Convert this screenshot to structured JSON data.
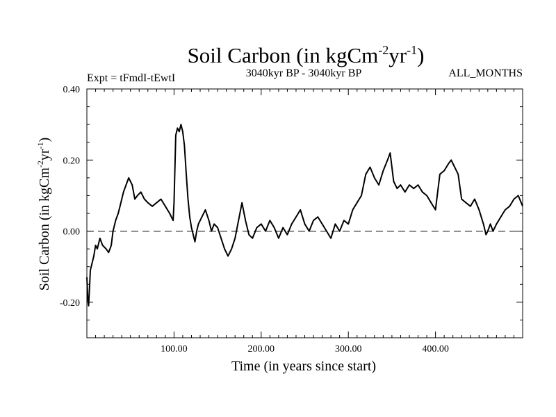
{
  "chart_data": {
    "type": "line",
    "title": {
      "main": "Soil Carbon (in kgCm",
      "sup1": "-2",
      "mid": "yr",
      "sup2": "-1",
      "end": ")"
    },
    "ylabel": {
      "main": "Soil Carbon (in kgCm",
      "sup1": "-2",
      "mid": "yr",
      "sup2": "-1",
      "end": ")"
    },
    "xlabel": "Time (in years since start)",
    "subtitle_left": "Expt = tFmdI-tEwtI",
    "subtitle_center": "3040kyr BP - 3040kyr BP",
    "subtitle_right": "ALL_MONTHS",
    "xlim": [
      0,
      500
    ],
    "ylim": [
      -0.3,
      0.4
    ],
    "xticks": [
      {
        "value": 100,
        "label": "100.00"
      },
      {
        "value": 200,
        "label": "200.00"
      },
      {
        "value": 300,
        "label": "300.00"
      },
      {
        "value": 400,
        "label": "400.00"
      }
    ],
    "yticks": [
      {
        "value": 0.4,
        "label": "0.40"
      },
      {
        "value": 0.2,
        "label": "0.20"
      },
      {
        "value": 0.0,
        "label": "0.00"
      },
      {
        "value": -0.2,
        "label": "-0.20"
      }
    ],
    "reference_line": 0.0,
    "series": [
      {
        "name": "Soil Carbon",
        "x": [
          0,
          1,
          2,
          3,
          4,
          6,
          8,
          10,
          12,
          15,
          18,
          22,
          25,
          28,
          30,
          33,
          36,
          38,
          40,
          42,
          45,
          48,
          50,
          52,
          55,
          58,
          62,
          66,
          70,
          75,
          80,
          85,
          90,
          95,
          99,
          100,
          102,
          104,
          106,
          108,
          110,
          112,
          114,
          116,
          118,
          120,
          122,
          124,
          126,
          128,
          132,
          136,
          140,
          143,
          146,
          150,
          154,
          158,
          162,
          166,
          170,
          174,
          178,
          182,
          186,
          190,
          195,
          200,
          205,
          210,
          215,
          220,
          225,
          230,
          235,
          240,
          245,
          250,
          255,
          260,
          265,
          270,
          275,
          280,
          285,
          290,
          295,
          300,
          305,
          310,
          315,
          320,
          325,
          330,
          335,
          340,
          345,
          348,
          352,
          356,
          360,
          365,
          370,
          375,
          380,
          385,
          390,
          395,
          400,
          405,
          410,
          415,
          418,
          422,
          426,
          430,
          435,
          440,
          445,
          450,
          455,
          458,
          460,
          463,
          466,
          470,
          475,
          480,
          485,
          490,
          495,
          500
        ],
        "values": [
          -0.13,
          -0.19,
          -0.21,
          -0.16,
          -0.11,
          -0.09,
          -0.07,
          -0.04,
          -0.05,
          -0.02,
          -0.04,
          -0.05,
          -0.06,
          -0.04,
          0.0,
          0.03,
          0.05,
          0.07,
          0.09,
          0.11,
          0.13,
          0.15,
          0.14,
          0.13,
          0.09,
          0.1,
          0.11,
          0.09,
          0.08,
          0.07,
          0.08,
          0.09,
          0.07,
          0.05,
          0.03,
          0.08,
          0.27,
          0.29,
          0.28,
          0.3,
          0.28,
          0.24,
          0.16,
          0.09,
          0.04,
          0.01,
          -0.01,
          -0.03,
          0.0,
          0.02,
          0.04,
          0.06,
          0.03,
          0.0,
          0.02,
          0.01,
          -0.02,
          -0.05,
          -0.07,
          -0.05,
          -0.02,
          0.03,
          0.08,
          0.03,
          -0.01,
          -0.02,
          0.01,
          0.02,
          0.0,
          0.03,
          0.01,
          -0.02,
          0.01,
          -0.01,
          0.02,
          0.04,
          0.06,
          0.02,
          0.0,
          0.03,
          0.04,
          0.02,
          0.0,
          -0.02,
          0.02,
          0.0,
          0.03,
          0.02,
          0.06,
          0.08,
          0.1,
          0.16,
          0.18,
          0.15,
          0.13,
          0.17,
          0.2,
          0.22,
          0.14,
          0.12,
          0.13,
          0.11,
          0.13,
          0.12,
          0.13,
          0.11,
          0.1,
          0.08,
          0.06,
          0.16,
          0.17,
          0.19,
          0.2,
          0.18,
          0.16,
          0.09,
          0.08,
          0.07,
          0.09,
          0.06,
          0.02,
          -0.01,
          0.0,
          0.02,
          0.0,
          0.02,
          0.04,
          0.06,
          0.07,
          0.09,
          0.1,
          0.07
        ]
      }
    ]
  }
}
